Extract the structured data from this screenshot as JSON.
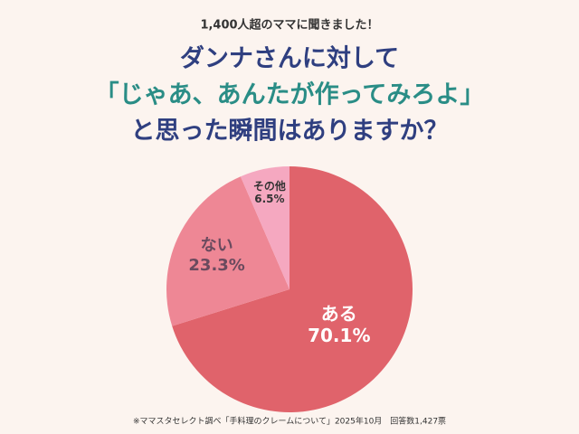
{
  "chart_data": {
    "type": "pie",
    "subtitle": "1,400人超のママに聞きました！",
    "title_lines": [
      "ダンナさんに対して",
      "「じゃあ、あんたが作ってみろよ」",
      "と思った瞬間はありますか？"
    ],
    "categories": [
      "ある",
      "ない",
      "その他"
    ],
    "values": [
      70.1,
      23.3,
      6.5
    ],
    "value_labels": [
      "70.1%",
      "23.3%",
      "6.5%"
    ],
    "colors": [
      "#e0636b",
      "#ee8795",
      "#f5a8c0"
    ],
    "source": "※ママスタセレクト調べ「手料理のクレームについて」2025年10月　回答数1,427票"
  }
}
